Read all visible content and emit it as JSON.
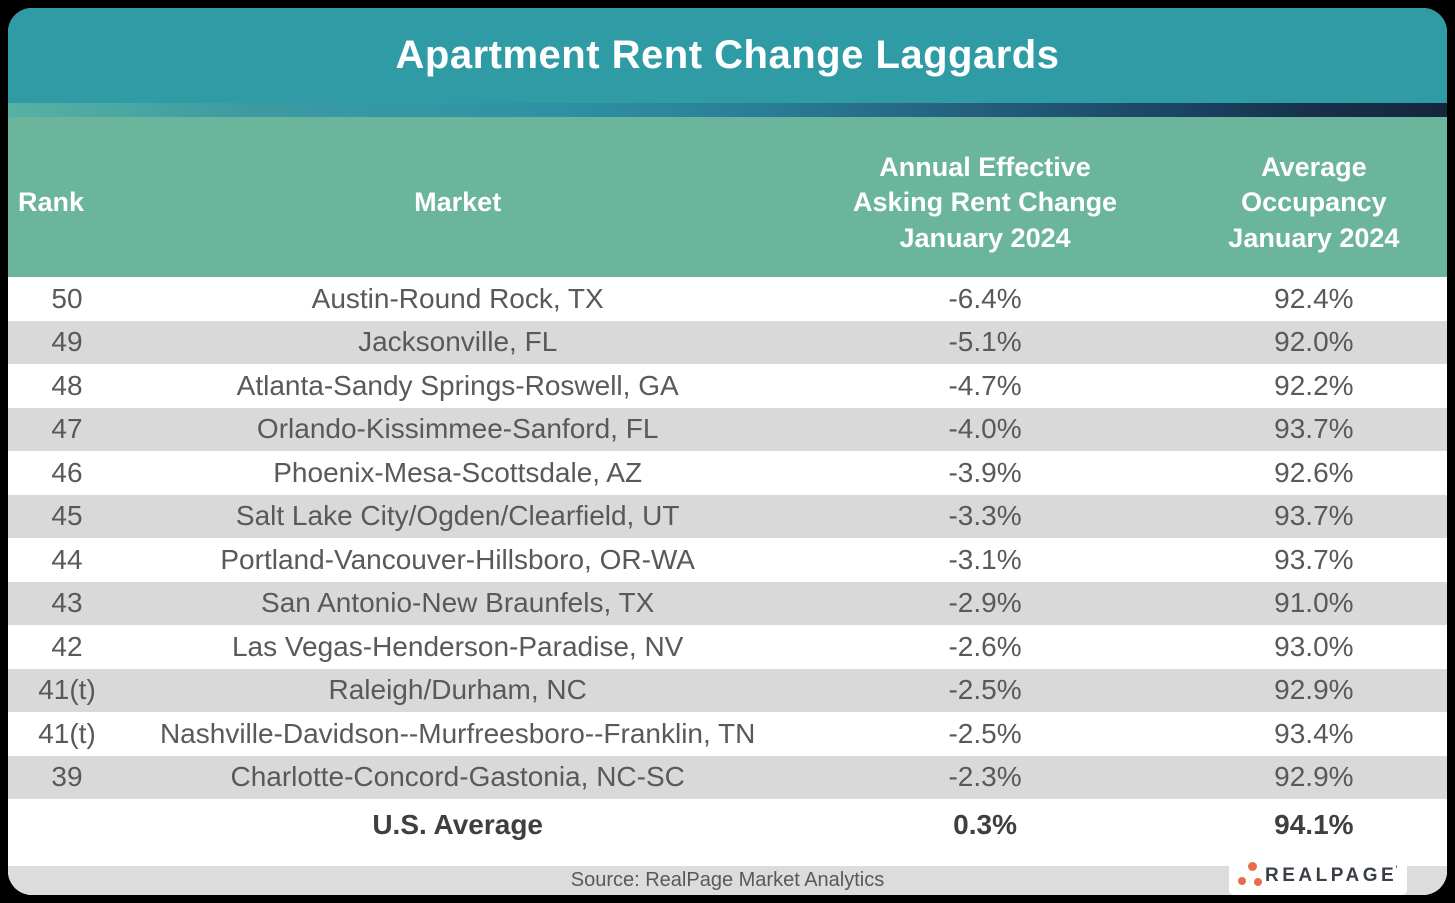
{
  "title": "Apartment Rent Change Laggards",
  "table": {
    "headers": {
      "rank": "Rank",
      "market": "Market",
      "rent_change": "Annual Effective\nAsking Rent Change\nJanuary 2024",
      "occupancy": "Average\nOccupancy\nJanuary 2024"
    },
    "rows": [
      {
        "rank": "50",
        "market": "Austin-Round Rock, TX",
        "rent_change": "-6.4%",
        "occupancy": "92.4%"
      },
      {
        "rank": "49",
        "market": "Jacksonville, FL",
        "rent_change": "-5.1%",
        "occupancy": "92.0%"
      },
      {
        "rank": "48",
        "market": "Atlanta-Sandy Springs-Roswell, GA",
        "rent_change": "-4.7%",
        "occupancy": "92.2%"
      },
      {
        "rank": "47",
        "market": "Orlando-Kissimmee-Sanford, FL",
        "rent_change": "-4.0%",
        "occupancy": "93.7%"
      },
      {
        "rank": "46",
        "market": "Phoenix-Mesa-Scottsdale, AZ",
        "rent_change": "-3.9%",
        "occupancy": "92.6%"
      },
      {
        "rank": "45",
        "market": "Salt Lake City/Ogden/Clearfield, UT",
        "rent_change": "-3.3%",
        "occupancy": "93.7%"
      },
      {
        "rank": "44",
        "market": "Portland-Vancouver-Hillsboro, OR-WA",
        "rent_change": "-3.1%",
        "occupancy": "93.7%"
      },
      {
        "rank": "43",
        "market": "San Antonio-New Braunfels, TX",
        "rent_change": "-2.9%",
        "occupancy": "91.0%"
      },
      {
        "rank": "42",
        "market": "Las Vegas-Henderson-Paradise, NV",
        "rent_change": "-2.6%",
        "occupancy": "93.0%"
      },
      {
        "rank": "41(t)",
        "market": "Raleigh/Durham, NC",
        "rent_change": "-2.5%",
        "occupancy": "92.9%"
      },
      {
        "rank": "41(t)",
        "market": "Nashville-Davidson--Murfreesboro--Franklin, TN",
        "rent_change": "-2.5%",
        "occupancy": "93.4%"
      },
      {
        "rank": "39",
        "market": "Charlotte-Concord-Gastonia, NC-SC",
        "rent_change": "-2.3%",
        "occupancy": "92.9%"
      }
    ],
    "summary": {
      "market": "U.S. Average",
      "rent_change": "0.3%",
      "occupancy": "94.1%"
    }
  },
  "footer": {
    "source": "Source: RealPage Market Analytics"
  },
  "logo": {
    "text": "REALPAGE",
    "mark": "’"
  },
  "colors": {
    "title_bar_teal": "#2f9ba4",
    "header_green": "#6ab59b",
    "row_alt_gray": "#d9d9d9",
    "footer_bar_gray": "#dcdcdc",
    "gradient_navy_end": "#15263c",
    "body_text": "#595959",
    "logo_orange": "#e96d4c",
    "logo_navy": "#3a3f47"
  },
  "chart_data": {
    "type": "table",
    "title": "Apartment Rent Change Laggards",
    "columns": [
      "Rank",
      "Market",
      "Annual Effective Asking Rent Change January 2024",
      "Average Occupancy January 2024"
    ],
    "rows": [
      {
        "rank": "50",
        "market": "Austin-Round Rock, TX",
        "rent_change_pct": -6.4,
        "occupancy_pct": 92.4
      },
      {
        "rank": "49",
        "market": "Jacksonville, FL",
        "rent_change_pct": -5.1,
        "occupancy_pct": 92.0
      },
      {
        "rank": "48",
        "market": "Atlanta-Sandy Springs-Roswell, GA",
        "rent_change_pct": -4.7,
        "occupancy_pct": 92.2
      },
      {
        "rank": "47",
        "market": "Orlando-Kissimmee-Sanford, FL",
        "rent_change_pct": -4.0,
        "occupancy_pct": 93.7
      },
      {
        "rank": "46",
        "market": "Phoenix-Mesa-Scottsdale, AZ",
        "rent_change_pct": -3.9,
        "occupancy_pct": 92.6
      },
      {
        "rank": "45",
        "market": "Salt Lake City/Ogden/Clearfield, UT",
        "rent_change_pct": -3.3,
        "occupancy_pct": 93.7
      },
      {
        "rank": "44",
        "market": "Portland-Vancouver-Hillsboro, OR-WA",
        "rent_change_pct": -3.1,
        "occupancy_pct": 93.7
      },
      {
        "rank": "43",
        "market": "San Antonio-New Braunfels, TX",
        "rent_change_pct": -2.9,
        "occupancy_pct": 91.0
      },
      {
        "rank": "42",
        "market": "Las Vegas-Henderson-Paradise, NV",
        "rent_change_pct": -2.6,
        "occupancy_pct": 93.0
      },
      {
        "rank": "41(t)",
        "market": "Raleigh/Durham, NC",
        "rent_change_pct": -2.5,
        "occupancy_pct": 92.9
      },
      {
        "rank": "41(t)",
        "market": "Nashville-Davidson--Murfreesboro--Franklin, TN",
        "rent_change_pct": -2.5,
        "occupancy_pct": 93.4
      },
      {
        "rank": "39",
        "market": "Charlotte-Concord-Gastonia, NC-SC",
        "rent_change_pct": -2.3,
        "occupancy_pct": 92.9
      }
    ],
    "us_average": {
      "rent_change_pct": 0.3,
      "occupancy_pct": 94.1
    }
  }
}
